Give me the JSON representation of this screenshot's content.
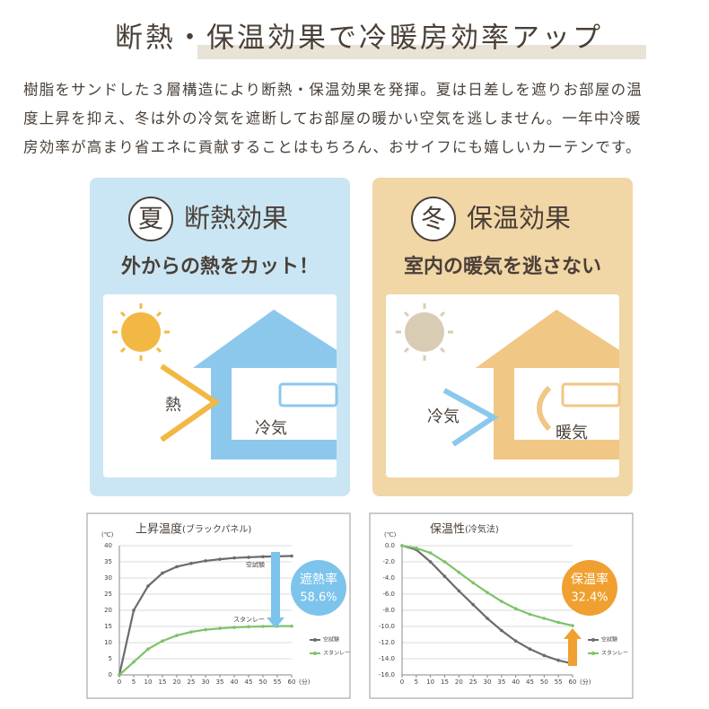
{
  "header": {
    "title": "断熱・保温効果で冷暖房効率アップ",
    "description": [
      "樹脂をサンドした３層構造により断熱・保温効果を発揮。夏は日差しを遮りお部屋の温",
      "度上昇を抑え、冬は外の冷気を遮断してお部屋の暖かい空気を逃しません。一年中冷暖",
      "房効率が高まり省エネに貢献することはもちろん、おサイフにも嬉しいカーテンです。"
    ]
  },
  "panels": [
    {
      "badge": "夏",
      "title": "断熱効果",
      "subtitle": "外からの熱をカット！",
      "labels": [
        "熱",
        "冷気"
      ]
    },
    {
      "badge": "冬",
      "title": "保温効果",
      "subtitle": "室内の暖気を逃さない",
      "labels": [
        "冷気",
        "暖気"
      ]
    }
  ],
  "chart_data": [
    {
      "type": "line",
      "title": "上昇温度",
      "subtitle": "(ブラックパネル)",
      "y_unit": "(℃)",
      "x_unit": "(分)",
      "x": [
        0,
        5,
        10,
        15,
        20,
        25,
        30,
        35,
        40,
        45,
        50,
        55,
        60
      ],
      "series": [
        {
          "name": "空試験",
          "color": "#6b6b6b",
          "values": [
            0,
            20,
            27.5,
            31.5,
            33.5,
            34.5,
            35.3,
            35.8,
            36.2,
            36.4,
            36.6,
            36.7,
            36.8
          ]
        },
        {
          "name": "スタンレー",
          "color": "#7dc36b",
          "values": [
            0,
            4,
            8,
            10.5,
            12.2,
            13.3,
            14,
            14.4,
            14.7,
            14.9,
            15,
            15.1,
            15.1
          ]
        }
      ],
      "xlim": [
        0,
        60
      ],
      "xticks": [
        0,
        5,
        10,
        15,
        20,
        25,
        30,
        35,
        40,
        45,
        50,
        55,
        60
      ],
      "ylim": [
        0,
        40
      ],
      "yticks": [
        0,
        5,
        10,
        15,
        20,
        25,
        30,
        35,
        40
      ],
      "grid": true,
      "annotation": {
        "label": "遮熱率",
        "text": "58.6%",
        "color": "#7cc4ec"
      }
    },
    {
      "type": "line",
      "title": "保温性",
      "subtitle": "(冷気法)",
      "y_unit": "(℃)",
      "x_unit": "(分)",
      "x": [
        0,
        5,
        10,
        15,
        20,
        25,
        30,
        35,
        40,
        45,
        50,
        55,
        60
      ],
      "series": [
        {
          "name": "空試験",
          "color": "#6b6b6b",
          "values": [
            0,
            -0.5,
            -2,
            -3.8,
            -5.6,
            -7.3,
            -9,
            -10.5,
            -11.8,
            -12.8,
            -13.6,
            -14.2,
            -14.6
          ]
        },
        {
          "name": "スタンレー",
          "color": "#7dc36b",
          "values": [
            0,
            -0.3,
            -0.9,
            -2,
            -3.3,
            -4.6,
            -5.8,
            -6.9,
            -7.8,
            -8.5,
            -9,
            -9.5,
            -9.9
          ]
        }
      ],
      "xlim": [
        0,
        60
      ],
      "xticks": [
        0,
        5,
        10,
        15,
        20,
        25,
        30,
        35,
        40,
        45,
        50,
        55,
        60
      ],
      "ylim": [
        -16,
        0
      ],
      "yticks": [
        {
          "value": 0,
          "label": "0.0"
        },
        {
          "value": -2,
          "label": "-2.0"
        },
        {
          "value": -4,
          "label": "-4.0"
        },
        {
          "value": -6,
          "label": "-6.0"
        },
        {
          "value": -8,
          "label": "-8.0"
        },
        {
          "value": -10,
          "label": "-10.0"
        },
        {
          "value": -12,
          "label": "-12.0"
        },
        {
          "value": -14,
          "label": "-14.0"
        },
        {
          "value": -16,
          "label": "-16.0"
        }
      ],
      "grid": true,
      "annotation": {
        "label": "保温率",
        "text": "32.4%",
        "color": "#f0a030"
      }
    }
  ]
}
